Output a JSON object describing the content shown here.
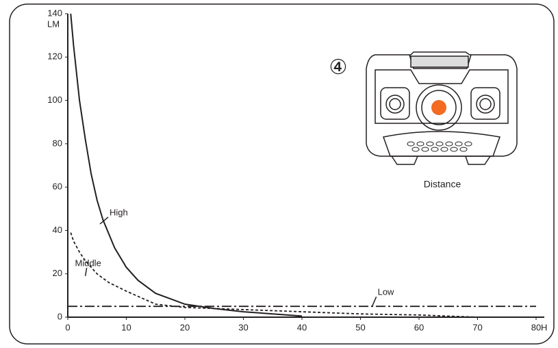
{
  "chart_data": {
    "type": "line",
    "x_label": "H",
    "y_label": "LM",
    "xlim": [
      0,
      80
    ],
    "xticks": [
      0,
      10,
      20,
      30,
      40,
      50,
      60,
      70,
      80
    ],
    "ylim": [
      0,
      140
    ],
    "yticks": [
      0,
      20,
      40,
      60,
      80,
      100,
      120,
      140
    ],
    "series": [
      {
        "name": "High",
        "color": "#231f20",
        "line_style": "solid",
        "x": [
          0.5,
          1,
          2,
          3,
          4,
          5,
          6,
          8,
          10,
          12,
          15,
          20,
          25,
          30,
          35,
          40
        ],
        "values": [
          140,
          125,
          100,
          82,
          66,
          54,
          45,
          32,
          23,
          17,
          11,
          6,
          4,
          2.5,
          1.5,
          0.5
        ]
      },
      {
        "name": "Middle",
        "color": "#231f20",
        "line_style": "dashed",
        "x": [
          0.5,
          1,
          2,
          3,
          5,
          7,
          10,
          15,
          20,
          30,
          40,
          50,
          60,
          70
        ],
        "values": [
          39,
          35,
          30,
          26,
          20,
          16,
          12,
          6,
          4.5,
          3.5,
          2.5,
          1.5,
          1,
          0
        ]
      },
      {
        "name": "Low",
        "color": "#231f20",
        "line_style": "dashdot",
        "x": [
          0,
          80
        ],
        "values": [
          5,
          5
        ]
      }
    ],
    "inset": {
      "marker": "④",
      "caption": "Distance",
      "lamp_color": "#f26b21"
    }
  }
}
